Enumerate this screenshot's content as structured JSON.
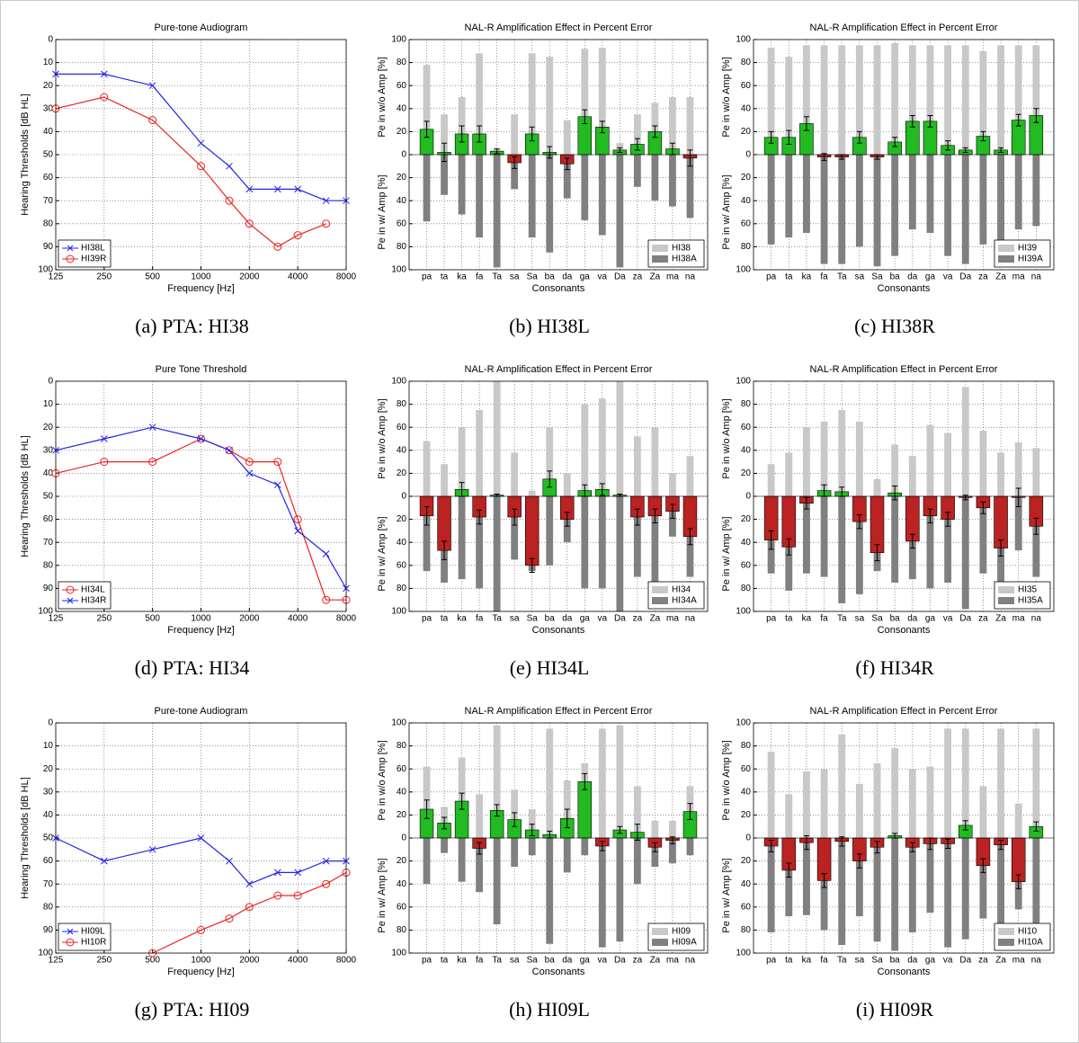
{
  "chart_data": [
    {
      "type": "line",
      "title": "Pure-tone Audiogram",
      "caption": "(a) PTA: HI38",
      "xlabel": "Frequency [Hz]",
      "ylabel": "Hearing Thresholds [dB HL]",
      "x": [
        125,
        250,
        500,
        1000,
        1500,
        2000,
        3000,
        4000,
        6000,
        8000
      ],
      "xscale": "log",
      "xlim": [
        125,
        8000
      ],
      "xticks": [
        125,
        250,
        500,
        1000,
        2000,
        4000,
        8000
      ],
      "ylim": [
        100,
        0
      ],
      "yticks": [
        0,
        10,
        20,
        30,
        40,
        50,
        60,
        70,
        80,
        90,
        100
      ],
      "grid": true,
      "legend": "lower left",
      "series": [
        {
          "name": "HI38L",
          "color": "#2222ee",
          "marker": "x",
          "values": [
            15,
            15,
            20,
            45,
            55,
            65,
            65,
            65,
            70,
            70
          ]
        },
        {
          "name": "HI39R",
          "color": "#ee2222",
          "marker": "o",
          "values": [
            30,
            25,
            35,
            55,
            70,
            80,
            90,
            85,
            80,
            null
          ]
        }
      ]
    },
    {
      "type": "bar",
      "title": "NAL-R Amplification Effect in Percent Error",
      "caption": "(b) HI38L",
      "xlabel": "Consonants",
      "ylabel_top": "Pe in w/o Amp [%]",
      "ylabel_bottom": "Pe in w/ Amp [%]",
      "categories": [
        "pa",
        "ta",
        "ka",
        "fa",
        "Ta",
        "sa",
        "Sa",
        "ba",
        "da",
        "ga",
        "va",
        "Da",
        "za",
        "Za",
        "ma",
        "na"
      ],
      "ylim": [
        -100,
        100
      ],
      "yticks": [
        {
          "value": -100,
          "label": "100"
        },
        {
          "value": -80,
          "label": "80"
        },
        {
          "value": -60,
          "label": "60"
        },
        {
          "value": -40,
          "label": "40"
        },
        {
          "value": -20,
          "label": "20"
        },
        0,
        20,
        40,
        60,
        80,
        100
      ],
      "grid": true,
      "legend": "lower right",
      "series": [
        {
          "name": "HI38",
          "color": "#c8c8c8",
          "values": [
            78,
            35,
            50,
            88,
            5,
            35,
            88,
            85,
            30,
            92,
            93,
            10,
            35,
            45,
            50,
            50
          ]
        },
        {
          "name": "HI38A",
          "color": "#808080",
          "values": [
            -58,
            -35,
            -52,
            -72,
            -98,
            -30,
            -72,
            -85,
            -38,
            -57,
            -70,
            -98,
            -28,
            -40,
            -45,
            -55
          ]
        }
      ],
      "difference": {
        "pos_color": "#22bb22",
        "neg_color": "#bb2222",
        "values": [
          22,
          2,
          18,
          18,
          3,
          -7,
          18,
          2,
          -8,
          33,
          24,
          4,
          9,
          20,
          5,
          -3
        ],
        "errors": [
          7,
          8,
          7,
          7,
          2,
          5,
          6,
          5,
          5,
          6,
          5,
          2,
          5,
          5,
          5,
          7
        ]
      }
    },
    {
      "type": "bar",
      "title": "NAL-R Amplification Effect in Percent Error",
      "caption": "(c) HI38R",
      "xlabel": "Consonants",
      "ylabel_top": "Pe in w/o Amp [%]",
      "ylabel_bottom": "Pe in w/ Amp [%]",
      "categories": [
        "pa",
        "ta",
        "ka",
        "fa",
        "Ta",
        "sa",
        "Sa",
        "ba",
        "da",
        "ga",
        "va",
        "Da",
        "za",
        "Za",
        "ma",
        "na"
      ],
      "ylim": [
        -100,
        100
      ],
      "yticks": [
        {
          "value": -100,
          "label": "100"
        },
        {
          "value": -80,
          "label": "80"
        },
        {
          "value": -60,
          "label": "60"
        },
        {
          "value": -40,
          "label": "40"
        },
        {
          "value": -20,
          "label": "20"
        },
        0,
        20,
        40,
        60,
        80,
        100
      ],
      "grid": true,
      "legend": "lower right",
      "series": [
        {
          "name": "HI39",
          "color": "#c8c8c8",
          "values": [
            93,
            85,
            95,
            95,
            95,
            95,
            95,
            97,
            95,
            95,
            95,
            95,
            90,
            95,
            95,
            95
          ]
        },
        {
          "name": "HI39A",
          "color": "#808080",
          "values": [
            -78,
            -72,
            -68,
            -95,
            -95,
            -80,
            -97,
            -88,
            -65,
            -68,
            -88,
            -95,
            -78,
            -92,
            -65,
            -62
          ]
        }
      ],
      "difference": {
        "pos_color": "#22bb22",
        "neg_color": "#bb2222",
        "values": [
          15,
          15,
          27,
          -2,
          -2,
          15,
          -2,
          11,
          29,
          29,
          8,
          4,
          16,
          4,
          30,
          34
        ],
        "errors": [
          5,
          6,
          6,
          3,
          2,
          5,
          2,
          4,
          5,
          5,
          4,
          2,
          4,
          2,
          5,
          6
        ]
      }
    },
    {
      "type": "line",
      "title": "Pure Tone Threshold",
      "caption": "(d) PTA: HI34",
      "xlabel": "Frequency [Hz]",
      "ylabel": "Hearing Thresholds [dB HL]",
      "x": [
        125,
        250,
        500,
        1000,
        1500,
        2000,
        3000,
        4000,
        6000,
        8000
      ],
      "xscale": "log",
      "xlim": [
        125,
        8000
      ],
      "xticks": [
        125,
        250,
        500,
        1000,
        2000,
        4000,
        8000
      ],
      "ylim": [
        100,
        0
      ],
      "yticks": [
        0,
        10,
        20,
        30,
        40,
        50,
        60,
        70,
        80,
        90,
        100
      ],
      "grid": true,
      "legend": "lower left",
      "series": [
        {
          "name": "HI34L",
          "color": "#ee2222",
          "marker": "o",
          "values": [
            40,
            35,
            35,
            25,
            30,
            35,
            35,
            60,
            95,
            95
          ]
        },
        {
          "name": "HI34R",
          "color": "#2222ee",
          "marker": "x",
          "values": [
            30,
            25,
            20,
            25,
            30,
            40,
            45,
            65,
            75,
            90
          ]
        }
      ]
    },
    {
      "type": "bar",
      "title": "NAL-R Amplification Effect in Percent Error",
      "caption": "(e) HI34L",
      "xlabel": "Consonants",
      "ylabel_top": "Pe in w/o Amp [%]",
      "ylabel_bottom": "Pe in w/ Amp [%]",
      "categories": [
        "pa",
        "ta",
        "ka",
        "fa",
        "Ta",
        "sa",
        "Sa",
        "ba",
        "da",
        "ga",
        "va",
        "Da",
        "za",
        "Za",
        "ma",
        "na"
      ],
      "ylim": [
        -100,
        100
      ],
      "yticks": [
        {
          "value": -100,
          "label": "100"
        },
        {
          "value": -80,
          "label": "80"
        },
        {
          "value": -60,
          "label": "60"
        },
        {
          "value": -40,
          "label": "40"
        },
        {
          "value": -20,
          "label": "20"
        },
        0,
        20,
        40,
        60,
        80,
        100
      ],
      "grid": true,
      "legend": "lower right",
      "series": [
        {
          "name": "HI34",
          "color": "#c8c8c8",
          "values": [
            48,
            28,
            60,
            75,
            100,
            38,
            5,
            60,
            20,
            80,
            85,
            100,
            52,
            60,
            20,
            35
          ]
        },
        {
          "name": "HI34A",
          "color": "#808080",
          "values": [
            -65,
            -75,
            -72,
            -80,
            -100,
            -55,
            -65,
            -60,
            -40,
            -80,
            -80,
            -100,
            -70,
            -75,
            -35,
            -70
          ]
        }
      ],
      "difference": {
        "pos_color": "#22bb22",
        "neg_color": "#bb2222",
        "values": [
          -17,
          -47,
          6,
          -18,
          1,
          -18,
          -60,
          15,
          -20,
          5,
          6,
          1,
          -18,
          -17,
          -13,
          -35
        ],
        "errors": [
          8,
          8,
          6,
          6,
          1,
          7,
          6,
          7,
          6,
          5,
          5,
          1,
          7,
          6,
          6,
          7
        ]
      }
    },
    {
      "type": "bar",
      "title": "NAL-R Amplification Effect in Percent Error",
      "caption": "(f) HI34R",
      "xlabel": "Consonants",
      "ylabel_top": "Pe in w/o Amp [%]",
      "ylabel_bottom": "Pe in w/ Amp [%]",
      "categories": [
        "pa",
        "ta",
        "ka",
        "fa",
        "Ta",
        "sa",
        "Sa",
        "ba",
        "da",
        "ga",
        "va",
        "Da",
        "za",
        "Za",
        "ma",
        "na"
      ],
      "ylim": [
        -100,
        100
      ],
      "yticks": [
        {
          "value": -100,
          "label": "100"
        },
        {
          "value": -80,
          "label": "80"
        },
        {
          "value": -60,
          "label": "60"
        },
        {
          "value": -40,
          "label": "40"
        },
        {
          "value": -20,
          "label": "20"
        },
        0,
        20,
        40,
        60,
        80,
        100
      ],
      "grid": true,
      "legend": "lower right",
      "series": [
        {
          "name": "HI35",
          "color": "#c8c8c8",
          "values": [
            28,
            38,
            60,
            65,
            75,
            65,
            15,
            45,
            35,
            62,
            55,
            95,
            57,
            38,
            47,
            42
          ]
        },
        {
          "name": "HI35A",
          "color": "#808080",
          "values": [
            -67,
            -82,
            -67,
            -70,
            -93,
            -85,
            -65,
            -75,
            -72,
            -80,
            -75,
            -98,
            -67,
            -82,
            -47,
            -70
          ]
        }
      ],
      "difference": {
        "pos_color": "#22bb22",
        "neg_color": "#bb2222",
        "values": [
          -38,
          -44,
          -6,
          5,
          4,
          -22,
          -49,
          3,
          -39,
          -17,
          -20,
          -1,
          -10,
          -45,
          -1,
          -26
        ],
        "errors": [
          8,
          7,
          5,
          5,
          4,
          6,
          7,
          6,
          6,
          6,
          6,
          2,
          5,
          7,
          8,
          7
        ]
      }
    },
    {
      "type": "line",
      "title": "Pure-tone Audiogram",
      "caption": "(g) PTA: HI09",
      "xlabel": "Frequency [Hz]",
      "ylabel": "Hearing Thresholds [dB HL]",
      "x": [
        125,
        250,
        500,
        1000,
        1500,
        2000,
        3000,
        4000,
        6000,
        8000
      ],
      "xscale": "log",
      "xlim": [
        125,
        8000
      ],
      "xticks": [
        125,
        250,
        500,
        1000,
        2000,
        4000,
        8000
      ],
      "ylim": [
        100,
        0
      ],
      "yticks": [
        0,
        10,
        20,
        30,
        40,
        50,
        60,
        70,
        80,
        90,
        100
      ],
      "grid": true,
      "legend": "lower left",
      "series": [
        {
          "name": "HI09L",
          "color": "#2222ee",
          "marker": "x",
          "values": [
            50,
            60,
            55,
            50,
            60,
            70,
            65,
            65,
            60,
            60
          ]
        },
        {
          "name": "HI10R",
          "color": "#ee2222",
          "marker": "o",
          "values": [
            null,
            null,
            100,
            90,
            85,
            80,
            75,
            75,
            70,
            65
          ]
        }
      ]
    },
    {
      "type": "bar",
      "title": "NAL-R Amplification Effect in Percent Error",
      "caption": "(h) HI09L",
      "xlabel": "Consonants",
      "ylabel_top": "Pe in w/o Amp [%]",
      "ylabel_bottom": "Pe in w/ Amp [%]",
      "categories": [
        "pa",
        "ta",
        "ka",
        "fa",
        "Ta",
        "sa",
        "Sa",
        "ba",
        "da",
        "ga",
        "va",
        "Da",
        "za",
        "Za",
        "ma",
        "na"
      ],
      "ylim": [
        -100,
        100
      ],
      "yticks": [
        {
          "value": -100,
          "label": "100"
        },
        {
          "value": -80,
          "label": "80"
        },
        {
          "value": -60,
          "label": "60"
        },
        {
          "value": -40,
          "label": "40"
        },
        {
          "value": -20,
          "label": "20"
        },
        0,
        20,
        40,
        60,
        80,
        100
      ],
      "grid": true,
      "legend": "lower right",
      "series": [
        {
          "name": "HI09",
          "color": "#c8c8c8",
          "values": [
            62,
            27,
            70,
            38,
            98,
            42,
            25,
            95,
            50,
            65,
            95,
            98,
            45,
            15,
            15,
            45
          ]
        },
        {
          "name": "HI09A",
          "color": "#808080",
          "values": [
            -40,
            -13,
            -38,
            -47,
            -75,
            -25,
            -15,
            -92,
            -30,
            -15,
            -95,
            -90,
            -40,
            -25,
            -22,
            -15
          ]
        }
      ],
      "difference": {
        "pos_color": "#22bb22",
        "neg_color": "#bb2222",
        "values": [
          25,
          13,
          32,
          -9,
          24,
          16,
          7,
          3,
          17,
          49,
          -7,
          7,
          5,
          -8,
          -2,
          23
        ],
        "errors": [
          8,
          5,
          7,
          5,
          5,
          6,
          5,
          3,
          8,
          7,
          4,
          3,
          7,
          4,
          3,
          7
        ]
      }
    },
    {
      "type": "bar",
      "title": "NAL-R Amplification Effect in Percent Error",
      "caption": "(i) HI09R",
      "xlabel": "Consonants",
      "ylabel_top": "Pe in w/o Amp [%]",
      "ylabel_bottom": "Pe in w/ Amp [%]",
      "categories": [
        "pa",
        "ta",
        "ka",
        "fa",
        "Ta",
        "sa",
        "Sa",
        "ba",
        "da",
        "ga",
        "va",
        "Da",
        "za",
        "Za",
        "ma",
        "na"
      ],
      "ylim": [
        -100,
        100
      ],
      "yticks": [
        {
          "value": -100,
          "label": "100"
        },
        {
          "value": -80,
          "label": "80"
        },
        {
          "value": -60,
          "label": "60"
        },
        {
          "value": -40,
          "label": "40"
        },
        {
          "value": -20,
          "label": "20"
        },
        0,
        20,
        40,
        60,
        80,
        100
      ],
      "grid": true,
      "legend": "lower right",
      "series": [
        {
          "name": "HI10",
          "color": "#c8c8c8",
          "values": [
            75,
            38,
            58,
            60,
            90,
            47,
            65,
            78,
            60,
            62,
            95,
            95,
            45,
            95,
            30,
            95
          ]
        },
        {
          "name": "HI10A",
          "color": "#808080",
          "values": [
            -82,
            -68,
            -67,
            -80,
            -93,
            -68,
            -90,
            -98,
            -82,
            -65,
            -95,
            -88,
            -70,
            -95,
            -62,
            -80
          ]
        }
      ],
      "difference": {
        "pos_color": "#22bb22",
        "neg_color": "#bb2222",
        "values": [
          -7,
          -28,
          -4,
          -37,
          -3,
          -20,
          -8,
          2,
          -8,
          -5,
          -5,
          11,
          -24,
          -6,
          -38,
          10
        ],
        "errors": [
          5,
          6,
          6,
          6,
          4,
          6,
          5,
          2,
          4,
          5,
          4,
          4,
          6,
          4,
          6,
          4
        ]
      }
    }
  ]
}
